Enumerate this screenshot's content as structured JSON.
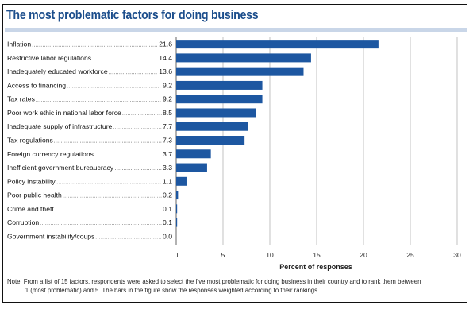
{
  "title": "The most problematic factors for doing business",
  "colors": {
    "bar": "#1d57a1",
    "title": "#1c4e8c",
    "rule": "#c9d6e8"
  },
  "chart_data": {
    "type": "bar",
    "orientation": "horizontal",
    "title": "The most problematic factors for doing business",
    "xlabel": "Percent of responses",
    "ylabel": "",
    "xlim": [
      0,
      30
    ],
    "xticks": [
      0,
      5,
      10,
      15,
      20,
      25,
      30
    ],
    "grid": "vertical",
    "categories": [
      "Inflation",
      "Restrictive labor regulations",
      "Inadequately educated workforce",
      "Access to financing",
      "Tax rates",
      "Poor work ethic in national labor force",
      "Inadequate supply of infrastructure",
      "Tax regulations",
      "Foreign currency regulations",
      "Inefficient government bureaucracy",
      "Policy instability",
      "Poor public health",
      "Crime and theft",
      "Corruption",
      "Government instability/coups"
    ],
    "values": [
      21.6,
      14.4,
      13.6,
      9.2,
      9.2,
      8.5,
      7.7,
      7.3,
      3.7,
      3.3,
      1.1,
      0.2,
      0.1,
      0.1,
      0.0
    ],
    "value_labels": [
      "21.6",
      "14.4",
      "13.6",
      "9.2",
      "9.2",
      "8.5",
      "7.7",
      "7.3",
      "3.7",
      "3.3",
      "1.1",
      "0.2",
      "0.1",
      "0.1",
      "0.0"
    ]
  },
  "note": {
    "line1": "Note: From a list of 15 factors, respondents were asked to select the five most problematic for doing business in their country and to rank them between",
    "line2": "1 (most problematic) and 5. The bars in the figure show the responses weighted according to their rankings."
  }
}
